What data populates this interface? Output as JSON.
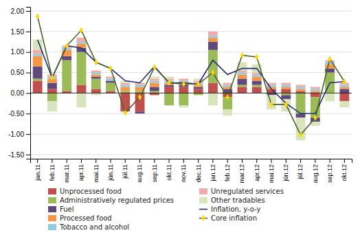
{
  "chart_data": {
    "type": "bar",
    "stacked": true,
    "grid": true,
    "legend": "bottom",
    "categories": [
      "jan.11",
      "feb.11",
      "mar.11",
      "apr.11",
      "mai.11",
      "jún.11",
      "júl.11",
      "aug.11",
      "sep.11",
      "okt.11",
      "nov.11",
      "dec.11",
      "jan.12",
      "feb.12",
      "mar.12",
      "apr.12",
      "mai.12",
      "jún.12",
      "júl.12",
      "aug.12",
      "sep.12",
      "okt.12"
    ],
    "series": [
      {
        "name": "Unprocessed food",
        "type": "bar",
        "color": "#C0504D",
        "values": [
          0.3,
          0.1,
          0.05,
          0.2,
          0.1,
          0.05,
          -0.45,
          -0.45,
          -0.05,
          0.15,
          0.15,
          0.1,
          0.25,
          -0.1,
          0.15,
          0.15,
          0.1,
          0.1,
          0.05,
          -0.1,
          0.0,
          -0.2
        ]
      },
      {
        "name": "Administratively regulated prices",
        "type": "bar",
        "color": "#9BBB59",
        "values": [
          0.05,
          -0.2,
          0.75,
          0.8,
          0.25,
          0.2,
          0.05,
          0.05,
          0.05,
          -0.3,
          -0.3,
          -0.05,
          0.8,
          -0.3,
          0.05,
          0.05,
          0.0,
          -0.05,
          -0.5,
          -0.5,
          0.5,
          0.0
        ]
      },
      {
        "name": "Fuel",
        "type": "bar",
        "color": "#604A7B",
        "values": [
          0.3,
          0.15,
          0.1,
          0.1,
          0.05,
          0.05,
          0.0,
          -0.05,
          0.1,
          0.05,
          0.05,
          0.05,
          0.2,
          0.1,
          0.15,
          0.1,
          -0.05,
          -0.1,
          -0.1,
          -0.1,
          0.1,
          0.1
        ]
      },
      {
        "name": "Processed food",
        "type": "bar",
        "color": "#F79646",
        "values": [
          0.25,
          0.1,
          0.15,
          0.1,
          0.05,
          0.0,
          0.1,
          0.1,
          0.1,
          0.05,
          0.05,
          0.05,
          0.1,
          0.05,
          0.1,
          0.1,
          0.05,
          0.05,
          0.05,
          0.05,
          0.1,
          0.05
        ]
      },
      {
        "name": "Tobacco and alcohol",
        "type": "bar",
        "color": "#92CDDC",
        "values": [
          0.05,
          0.05,
          0.05,
          0.05,
          0.05,
          0.05,
          0.05,
          0.05,
          0.05,
          0.05,
          0.05,
          0.05,
          0.05,
          0.05,
          0.05,
          0.05,
          0.05,
          0.05,
          0.05,
          0.05,
          0.05,
          0.05
        ]
      },
      {
        "name": "Unregulated services",
        "type": "bar",
        "color": "#F2ABAB",
        "values": [
          0.1,
          0.05,
          0.05,
          0.1,
          0.05,
          0.05,
          0.05,
          0.05,
          0.05,
          0.05,
          0.05,
          0.05,
          0.1,
          0.05,
          0.05,
          0.05,
          0.05,
          0.05,
          0.05,
          0.05,
          0.05,
          0.05
        ]
      },
      {
        "name": "Other tradables",
        "type": "bar",
        "color": "#D8E4BC",
        "values": [
          0.25,
          -0.25,
          0.0,
          -0.35,
          -0.05,
          0.0,
          0.05,
          0.0,
          0.05,
          0.05,
          -0.05,
          0.05,
          -0.3,
          -0.15,
          0.2,
          0.2,
          -0.35,
          -0.3,
          -0.55,
          -0.1,
          -0.2,
          -0.15
        ]
      },
      {
        "name": "Inflation, y-o-y",
        "type": "line",
        "color": "#1F2D6E",
        "values": [
          1.3,
          0.37,
          1.15,
          1.1,
          0.75,
          0.6,
          0.3,
          0.25,
          0.65,
          0.25,
          0.25,
          0.22,
          0.8,
          0.45,
          0.6,
          0.6,
          0.1,
          -0.25,
          -0.5,
          -0.5,
          0.25,
          0.28
        ]
      },
      {
        "name": "Core inflation",
        "type": "line",
        "color": "#4F6228",
        "marker": "diamond",
        "values": [
          1.87,
          0.38,
          1.15,
          1.53,
          0.75,
          0.6,
          -0.48,
          -0.1,
          0.63,
          0.25,
          0.22,
          0.22,
          0.5,
          -0.1,
          0.92,
          0.88,
          -0.28,
          -0.28,
          -1.02,
          -0.6,
          0.83,
          0.28
        ]
      }
    ],
    "ylim": [
      -1.6,
      2.1
    ],
    "yticks": [
      {
        "value": -1.5,
        "label": "-1.50"
      },
      {
        "value": -1.0,
        "label": "-1.00"
      },
      {
        "value": -0.5,
        "label": "-0.50"
      },
      {
        "value": 0.0,
        "label": "0.00"
      },
      {
        "value": 0.5,
        "label": "0.50"
      },
      {
        "value": 1.0,
        "label": "1.00"
      },
      {
        "value": 1.5,
        "label": "1.50"
      },
      {
        "value": 2.0,
        "label": "2.00"
      }
    ]
  }
}
